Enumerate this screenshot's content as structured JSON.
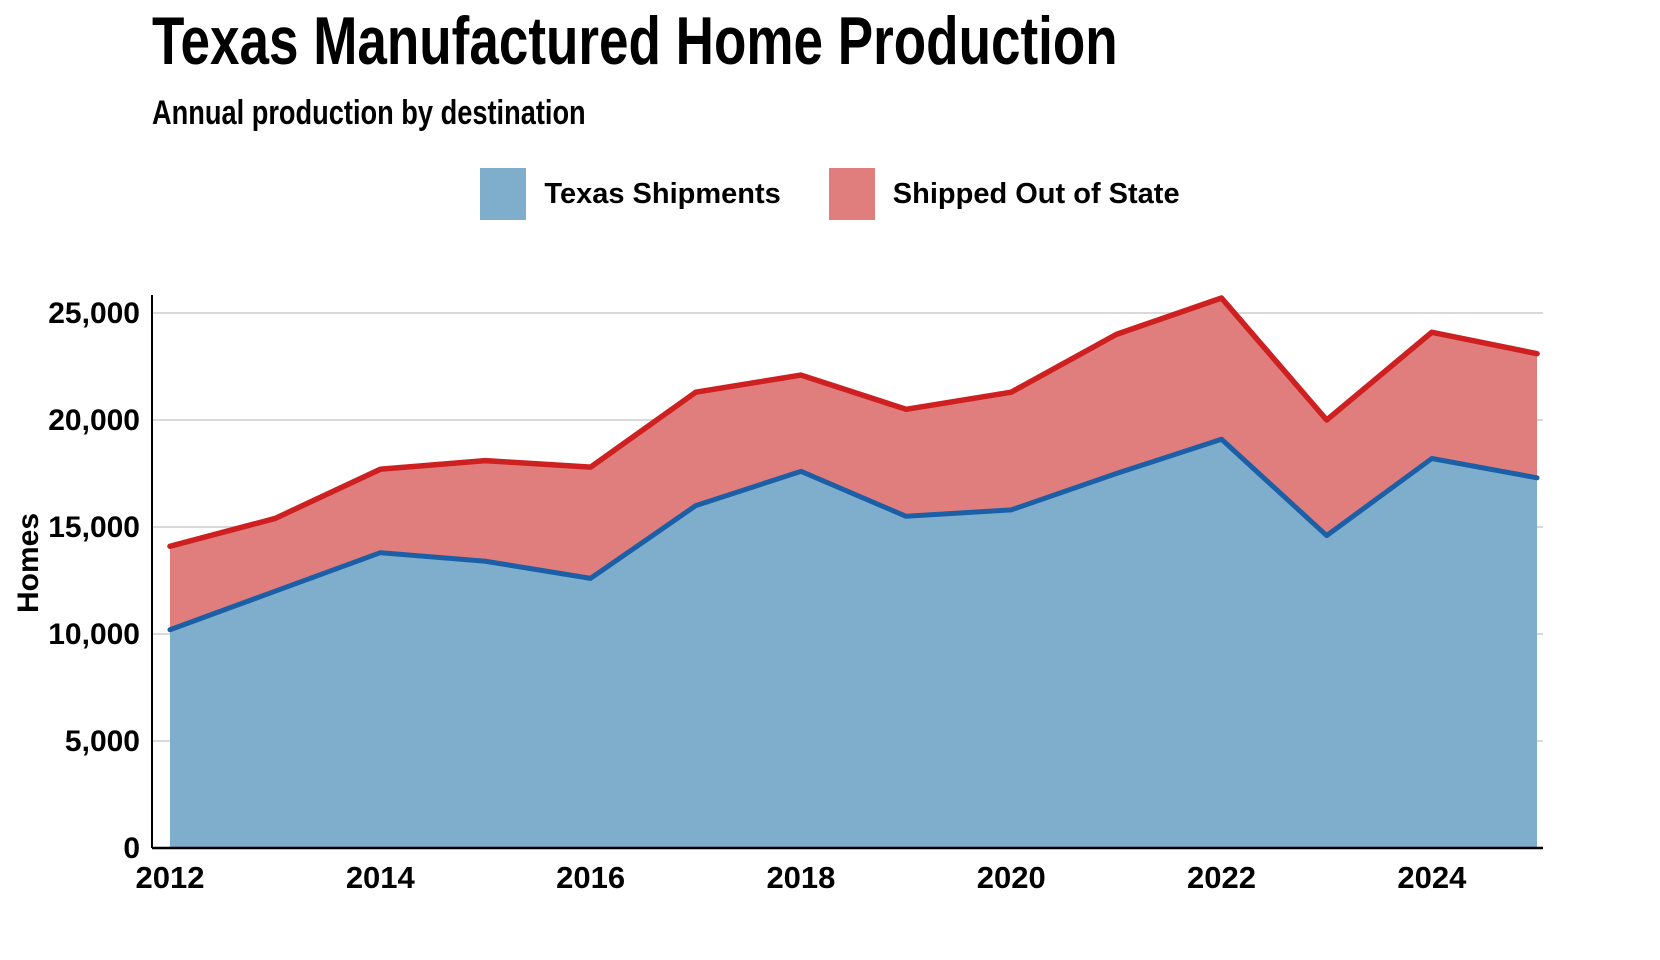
{
  "chart_data": {
    "type": "area",
    "stacked": true,
    "title": "Texas Manufactured Home Production",
    "subtitle": "Annual production by destination",
    "xlabel": "",
    "ylabel": "Homes",
    "x": [
      2012,
      2013,
      2014,
      2015,
      2016,
      2017,
      2018,
      2019,
      2020,
      2021,
      2022,
      2023,
      2024,
      2025
    ],
    "series": [
      {
        "name": "Texas Shipments",
        "values": [
          10200,
          12000,
          13800,
          13400,
          12600,
          16000,
          17600,
          15500,
          15800,
          17500,
          19100,
          14600,
          18200,
          17300
        ],
        "fill": "#7FAECD",
        "line": "#1B5FA7"
      },
      {
        "name": "Shipped Out of State",
        "values": [
          3900,
          3400,
          3900,
          4700,
          5200,
          5300,
          4500,
          5000,
          5500,
          6500,
          6600,
          5400,
          5900,
          5800
        ],
        "fill": "#E07E7E",
        "line": "#CE2020"
      }
    ],
    "totals": [
      14100,
      15400,
      17700,
      18100,
      17800,
      21300,
      22100,
      20500,
      21300,
      24000,
      25700,
      20000,
      24100,
      23100
    ],
    "ylim": [
      0,
      25000
    ],
    "yticks": [
      0,
      5000,
      10000,
      15000,
      20000,
      25000
    ],
    "xticks": [
      2012,
      2014,
      2016,
      2018,
      2020,
      2022,
      2024
    ],
    "grid": "horizontal",
    "gridline_color": "#d9d9d9",
    "axis_color": "#000000",
    "legend_position": "top-center"
  }
}
